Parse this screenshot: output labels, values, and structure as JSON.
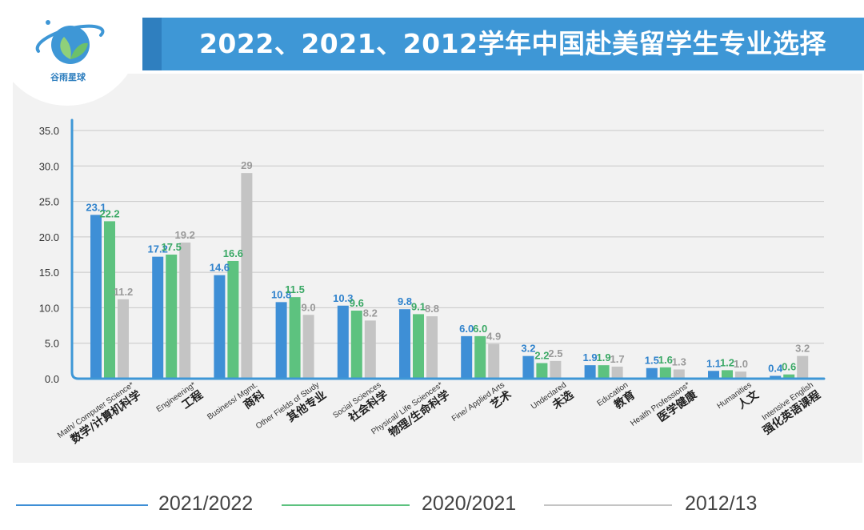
{
  "header": {
    "title": "2022、2021、2012学年中国赴美留学生专业选择",
    "brand": "谷雨星球"
  },
  "colors": {
    "header_band": "#3e97d6",
    "series_2021_2022": "#3e8fd6",
    "series_2020_2021": "#5dc27f",
    "series_2012_13": "#c4c4c4",
    "panel": "#f2f2f2"
  },
  "chart_data": {
    "type": "bar",
    "title": "2022、2021、2012学年中国赴美留学生专业选择",
    "ylim": [
      0,
      35
    ],
    "yticks": [
      "0.0",
      "5.0",
      "10.0",
      "15.0",
      "20.0",
      "25.0",
      "30.0",
      "35.0"
    ],
    "grid": true,
    "legend_position": "bottom",
    "categories": [
      {
        "en": "Math/ Computer Science*",
        "cn": "数学/计算机科学"
      },
      {
        "en": "Engineering*",
        "cn": "工程"
      },
      {
        "en": "Business/ Mgmt.",
        "cn": "商科"
      },
      {
        "en": "Other Fields of Study",
        "cn": "其他专业"
      },
      {
        "en": "Social Sciences",
        "cn": "社会科学"
      },
      {
        "en": "Physical/ Life Sciences*",
        "cn": "物理/生命科学"
      },
      {
        "en": "Fine/ Applied Arts",
        "cn": "艺术"
      },
      {
        "en": "Undeclared",
        "cn": "未选"
      },
      {
        "en": "Education",
        "cn": "教育"
      },
      {
        "en": "Health Professions*",
        "cn": "医学健康"
      },
      {
        "en": "Humanities",
        "cn": "人文"
      },
      {
        "en": "Intensive English",
        "cn": "强化英语课程"
      }
    ],
    "series": [
      {
        "name": "2021/2022",
        "values": [
          23.1,
          17.2,
          14.6,
          10.8,
          10.3,
          9.8,
          6.0,
          3.2,
          1.9,
          1.5,
          1.1,
          0.4
        ],
        "labels": [
          "23.1",
          "17.2",
          "14.6",
          "10.8",
          "10.3",
          "9.8",
          "6.0",
          "3.2",
          "1.9",
          "1.5",
          "1.1",
          "0.4"
        ]
      },
      {
        "name": "2020/2021",
        "values": [
          22.2,
          17.5,
          16.6,
          11.5,
          9.6,
          9.1,
          6.0,
          2.2,
          1.9,
          1.6,
          1.2,
          0.6
        ],
        "labels": [
          "22.2",
          "17.5",
          "16.6",
          "11.5",
          "9.6",
          "9.1",
          "6.0",
          "2.2",
          "1.9",
          "1.6",
          "1.2",
          "0.6"
        ]
      },
      {
        "name": "2012/13",
        "values": [
          11.2,
          19.2,
          29,
          9.0,
          8.2,
          8.8,
          4.9,
          2.5,
          1.7,
          1.3,
          1.0,
          3.2
        ],
        "labels": [
          "11.2",
          "19.2",
          "29",
          "9.0",
          "8.2",
          "8.8",
          "4.9",
          "2.5",
          "1.7",
          "1.3",
          "1.0",
          "3.2"
        ]
      }
    ]
  }
}
